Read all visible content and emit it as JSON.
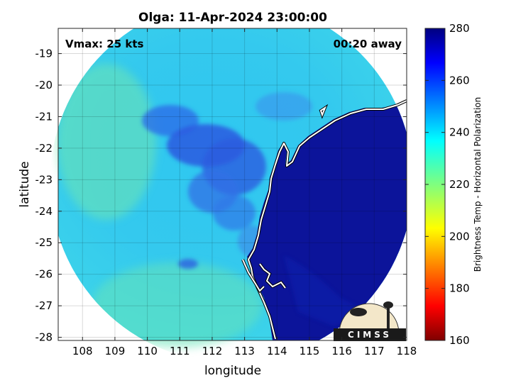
{
  "chart_data": {
    "type": "heatmap",
    "title": "Olga: 11-Apr-2024 23:00:00",
    "xlabel": "longitude",
    "ylabel": "latitude",
    "xlim": [
      107.25,
      118
    ],
    "ylim": [
      -28.1,
      -18.2
    ],
    "xticks": [
      108,
      109,
      110,
      111,
      112,
      113,
      114,
      115,
      116,
      117,
      118
    ],
    "yticks": [
      -19,
      -20,
      -21,
      -22,
      -23,
      -24,
      -25,
      -26,
      -27,
      -28
    ],
    "grid": true,
    "annotations": {
      "top_left": "Vmax: 25 kts",
      "top_right": "00:20 away"
    },
    "colorbar": {
      "label": "Brightness Temp - Horizontal Polarization",
      "min": 160,
      "max": 280,
      "ticks": [
        160,
        180,
        200,
        220,
        240,
        260,
        280
      ],
      "colormap": "jet"
    },
    "swath": {
      "shape": "circle",
      "center_lon": 112.6,
      "center_lat": -23.05,
      "radius_deg": 5.6
    },
    "logo_text": "CIMSS"
  }
}
